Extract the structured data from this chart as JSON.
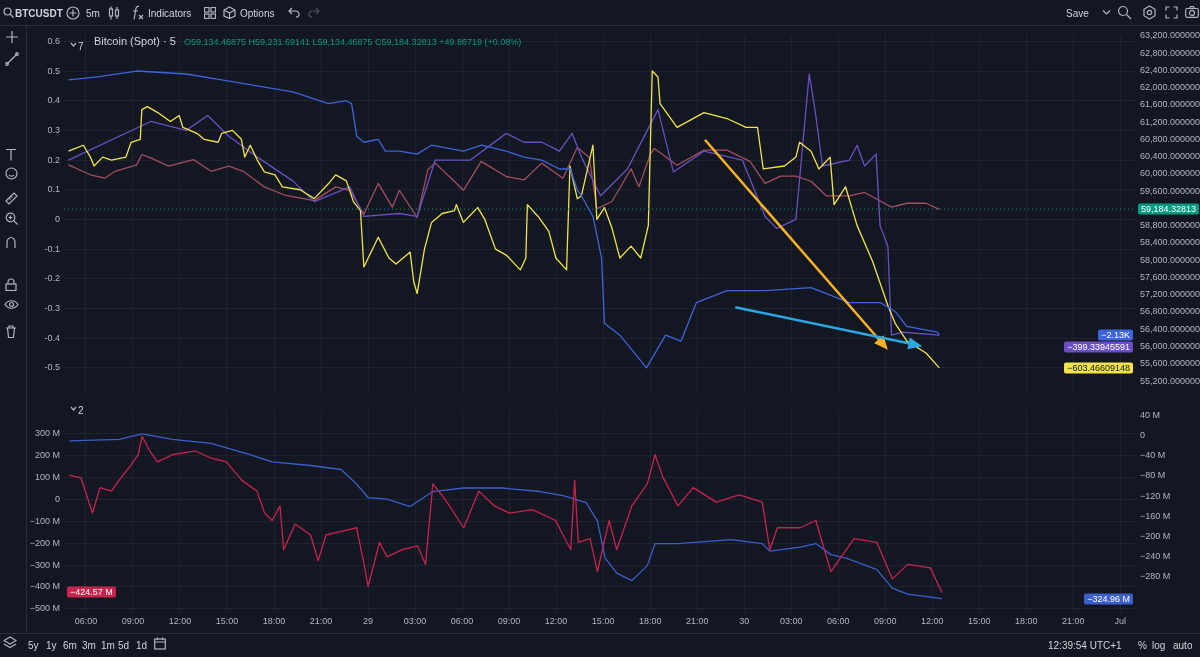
{
  "chart_data": [
    {
      "type": "line",
      "title": "Bitcoin (Spot) · 5",
      "subtitle": "O59,134.46875 H59,231.69141 L59,134.46875 C59,184.32813 +49.86719 (+0.08%)",
      "xlim": [
        "--06-28T04:36",
        "--07-01T01:00"
      ],
      "xticks": [
        {
          "value": "--06-28T06:00",
          "label": null
        },
        {
          "value": "--06-28T09:00",
          "label": null
        },
        {
          "value": "--06-28T12:00",
          "label": null
        },
        {
          "value": "--06-28T15:00",
          "label": null
        },
        {
          "value": "--06-28T18:00",
          "label": null
        },
        {
          "value": "--06-28T21:00",
          "label": null
        },
        {
          "value": "--06-29T00:00",
          "label": null
        },
        {
          "value": "--06-29T03:00",
          "label": null
        },
        {
          "value": "--06-29T06:00",
          "label": null
        },
        {
          "value": "--06-29T09:00",
          "label": null
        },
        {
          "value": "--06-29T12:00",
          "label": null
        },
        {
          "value": "--06-29T15:00",
          "label": null
        },
        {
          "value": "--06-29T18:00",
          "label": null
        },
        {
          "value": "--06-29T21:00",
          "label": null
        },
        {
          "value": "--06-30T00:00",
          "label": null
        },
        {
          "value": "--06-30T03:00",
          "label": null
        },
        {
          "value": "--06-30T06:00",
          "label": null
        },
        {
          "value": "--06-30T09:00",
          "label": null
        },
        {
          "value": "--06-30T12:00",
          "label": null
        },
        {
          "value": "--06-30T15:00",
          "label": null
        },
        {
          "value": "--06-30T18:00",
          "label": null
        },
        {
          "value": "--06-30T21:00",
          "label": null
        },
        {
          "value": "--07-01T00:00",
          "label": null
        }
      ],
      "ylim": [
        -0.58,
        0.62
      ],
      "yticks": [
        0.6,
        0.5,
        0.4,
        0.3,
        0.2,
        0.1,
        0,
        -0.1,
        -0.2,
        -0.3,
        -0.4,
        -0.5
      ],
      "y2lim": [
        54955,
        63210
      ],
      "y2ticks": [
        {
          "value": 63200,
          "label": "63,200.000000"
        },
        {
          "value": 62800,
          "label": "62,800.000000"
        },
        {
          "value": 62400,
          "label": "62,400.000000"
        },
        {
          "value": 62000,
          "label": "62,000.000000"
        },
        {
          "value": 61600,
          "label": "61,600.000000"
        },
        {
          "value": 61200,
          "label": "61,200.000000"
        },
        {
          "value": 60800,
          "label": "60,800.000000"
        },
        {
          "value": 60400,
          "label": "60,400.000000"
        },
        {
          "value": 60000,
          "label": "60,000.000000"
        },
        {
          "value": 59600,
          "label": "59,600.000000"
        },
        {
          "value": 58800,
          "label": "58,800.000000"
        },
        {
          "value": 58400,
          "label": "58,400.000000"
        },
        {
          "value": 58000,
          "label": "58,000.000000"
        },
        {
          "value": 57600,
          "label": "57,600.000000"
        },
        {
          "value": 57200,
          "label": "57,200.000000"
        },
        {
          "value": 56800,
          "label": "56,800.000000"
        },
        {
          "value": 56400,
          "label": "56,400.000000"
        },
        {
          "value": 56000,
          "label": "56,000.000000"
        },
        {
          "value": 55600,
          "label": "55,600.000000"
        },
        {
          "value": 55200,
          "label": "55,200.000000"
        }
      ],
      "grid": true,
      "tick_labels": "y",
      "series": [
        {
          "color": "#3d63dd",
          "x": [
            "--06-28T04:53",
            "--06-28T06:44",
            "--06-28T09:14",
            "--06-28T12:24",
            "--06-28T14:40",
            "--06-28T16:56",
            "--06-28T19:12",
            "--06-28T21:28",
            "--06-28T22:36",
            "--06-28T22:57",
            "--06-28T23:17",
            "--06-28T23:44",
            "--06-29T00:39",
            "--06-29T01:06",
            "--06-29T02:00",
            "--06-29T03:08",
            "--06-29T04:03",
            "--06-29T06:05",
            "--06-29T07:14",
            "--06-29T08:49",
            "--06-29T09:57",
            "--06-29T11:05",
            "--06-29T12:13",
            "--06-29T12:54",
            "--06-29T13:21",
            "--06-29T13:37",
            "--06-29T14:21",
            "--06-29T14:54",
            "--06-29T15:05",
            "--06-29T16:04",
            "--06-29T17:46",
            "--06-29T18:59",
            "--06-29T19:58",
            "--06-29T20:57",
            "--06-29T22:54",
            "--06-30T01:20",
            "--06-30T04:16",
            "--06-30T06:43",
            "--06-30T08:40",
            "--06-30T09:38",
            "--06-30T10:22",
            "--06-30T12:20",
            "--06-30T12:27"
          ],
          "values": [
            0.47,
            0.48,
            0.5,
            0.49,
            0.47,
            0.45,
            0.43,
            0.39,
            0.4,
            0.39,
            0.28,
            0.26,
            0.27,
            0.23,
            0.23,
            0.22,
            0.25,
            0.23,
            0.25,
            0.23,
            0.21,
            0.2,
            0.17,
            0.17,
            0.1,
            0.08,
            0.01,
            -0.13,
            -0.35,
            -0.39,
            -0.5,
            -0.39,
            -0.41,
            -0.28,
            -0.24,
            -0.24,
            -0.23,
            -0.28,
            -0.28,
            -0.31,
            -0.36,
            -0.38,
            -0.39
          ]
        },
        {
          "color": "#f2e34a",
          "x": [
            "--06-28T04:53",
            "--06-28T05:22",
            "--06-28T05:50",
            "--06-28T06:17",
            "--06-28T06:31",
            "--06-28T07:04",
            "--06-28T07:38",
            "--06-28T08:33",
            "--06-28T08:53",
            "--06-28T09:28",
            "--06-28T09:34",
            "--06-28T09:55",
            "--06-28T10:35",
            "--06-28T11:23",
            "--06-28T11:57",
            "--06-28T12:11",
            "--06-28T13:05",
            "--06-28T13:32",
            "--06-28T14:26",
            "--06-28T14:40",
            "--06-28T15:21",
            "--06-28T15:55",
            "--06-28T16:08",
            "--06-28T16:29",
            "--06-28T16:56",
            "--06-28T17:23",
            "--06-28T18:04",
            "--06-28T18:32",
            "--06-28T19:40",
            "--06-28T20:34",
            "--06-28T21:28",
            "--06-28T21:56",
            "--06-28T22:37",
            "--06-28T23:04",
            "--06-28T23:31",
            "--06-28T23:44",
            "--06-29T00:39",
            "--06-29T01:20",
            "--06-29T01:47",
            "--06-29T02:41",
            "--06-29T02:55",
            "--06-29T03:08",
            "--06-29T03:36",
            "--06-29T04:03",
            "--06-29T04:44",
            "--06-29T05:31",
            "--06-29T05:38",
            "--06-29T06:05",
            "--06-29T07:00",
            "--06-29T07:27",
            "--06-29T08:08",
            "--06-29T08:49",
            "--06-29T09:43",
            "--06-29T10:04",
            "--06-29T10:10",
            "--06-29T10:51",
            "--06-29T11:32",
            "--06-29T11:59",
            "--06-29T12:40",
            "--06-29T12:53",
            "--06-29T13:21",
            "--06-29T13:37",
            "--06-29T14:21",
            "--06-29T14:36",
            "--06-29T15:05",
            "--06-29T15:34",
            "--06-29T16:04",
            "--06-29T16:47",
            "--06-29T17:24",
            "--06-29T17:53",
            "--06-29T18:08",
            "--06-29T18:30",
            "--06-29T18:38",
            "--06-29T19:43",
            "--06-29T21:26",
            "--06-29T22:54",
            "--06-30T00:07",
            "--06-30T00:51",
            "--06-30T01:13",
            "--06-30T02:34",
            "--06-30T03:18",
            "--06-30T03:32",
            "--06-30T04:16",
            "--06-30T04:46",
            "--06-30T05:29",
            "--06-30T05:44",
            "--06-30T06:28",
            "--06-30T07:12",
            "--06-30T08:11",
            "--06-30T09:10",
            "--06-30T09:38",
            "--06-30T10:23",
            "--06-30T11:36",
            "--06-30T12:27"
          ],
          "values": [
            0.23,
            0.24,
            0.25,
            0.21,
            0.18,
            0.21,
            0.2,
            0.21,
            0.26,
            0.27,
            0.37,
            0.38,
            0.36,
            0.33,
            0.35,
            0.31,
            0.29,
            0.27,
            0.26,
            0.29,
            0.3,
            0.27,
            0.21,
            0.25,
            0.2,
            0.16,
            0.15,
            0.11,
            0.1,
            0.07,
            0.12,
            0.15,
            0.13,
            0.06,
            0.03,
            -0.16,
            -0.06,
            -0.13,
            -0.15,
            -0.11,
            -0.21,
            -0.25,
            -0.1,
            -0.01,
            0.02,
            0.03,
            0.05,
            -0.01,
            0.04,
            0,
            -0.1,
            -0.12,
            -0.17,
            -0.13,
            0.05,
            0.01,
            -0.04,
            -0.13,
            -0.17,
            0.18,
            0.07,
            0.08,
            0.25,
            0,
            0.04,
            -0.03,
            -0.13,
            -0.09,
            -0.13,
            -0.02,
            0.5,
            0.48,
            0.39,
            0.31,
            0.36,
            0.34,
            0.31,
            0.31,
            0.17,
            0.18,
            0.21,
            0.26,
            0.23,
            0.17,
            0.21,
            0.05,
            0.11,
            -0.02,
            -0.14,
            -0.29,
            -0.35,
            -0.41,
            -0.45,
            -0.5
          ]
        },
        {
          "color": "#6a4fc4",
          "x": [
            "--06-28T04:53",
            "--06-28T10:08",
            "--06-28T12:24",
            "--06-28T13:46",
            "--06-28T15:07",
            "--06-28T16:56",
            "--06-28T19:12",
            "--06-28T20:34",
            "--06-28T22:50",
            "--06-28T23:44",
            "--06-29T02:00",
            "--06-29T03:08",
            "--06-29T04:17",
            "--06-29T06:32",
            "--06-29T08:49",
            "--06-29T09:57",
            "--06-29T11:05",
            "--06-29T12:13",
            "--06-29T13:01",
            "--06-29T13:37",
            "--06-29T14:50",
            "--06-29T16:33",
            "--06-29T18:30",
            "--06-29T19:29",
            "--06-29T21:26",
            "--06-29T23:53",
            "--06-30T01:20",
            "--06-30T02:04",
            "--06-30T03:18",
            "--06-30T03:47",
            "--06-30T04:09",
            "--06-30T04:31",
            "--06-30T05:00",
            "--06-30T06:43",
            "--06-30T07:12",
            "--06-30T07:41",
            "--06-30T08:25",
            "--06-30T08:40",
            "--06-30T09:10",
            "--06-30T09:24",
            "--06-30T10:08",
            "--06-30T12:27"
          ],
          "values": [
            0.2,
            0.33,
            0.3,
            0.35,
            0.28,
            0.21,
            0.13,
            0.06,
            0.11,
            0.01,
            0.02,
            0.01,
            0.2,
            0.2,
            0.29,
            0.26,
            0.26,
            0.23,
            0.29,
            0.21,
            0.08,
            0.17,
            0.37,
            0.16,
            0.23,
            0.2,
            0.01,
            -0.03,
            0,
            0.28,
            0.49,
            0.37,
            0.18,
            0.2,
            0.25,
            0.18,
            0.22,
            -0.02,
            -0.09,
            -0.39,
            -0.38,
            -0.39
          ]
        },
        {
          "color": "#a34d5e",
          "axis": "y2",
          "x": [
            "--06-28T04:53",
            "--06-28T06:17",
            "--06-28T07:11",
            "--06-28T07:52",
            "--06-28T09:14",
            "--06-28T09:34",
            "--06-28T10:08",
            "--06-28T11:16",
            "--06-28T12:52",
            "--06-28T13:59",
            "--06-28T15:07",
            "--06-28T16:02",
            "--06-28T17:23",
            "--06-28T18:45",
            "--06-28T20:34",
            "--06-28T21:56",
            "--06-28T22:50",
            "--06-28T23:44",
            "--06-29T00:39",
            "--06-29T01:33",
            "--06-29T02:00",
            "--06-29T03:08",
            "--06-29T03:49",
            "--06-29T04:17",
            "--06-29T05:25",
            "--06-29T06:05",
            "--06-29T07:13",
            "--06-29T08:49",
            "--06-29T09:57",
            "--06-29T11:05",
            "--06-29T12:26",
            "--06-29T13:21",
            "--06-29T14:07",
            "--06-29T14:36",
            "--06-29T15:34",
            "--06-29T16:47",
            "--06-29T17:17",
            "--06-29T18:01",
            "--06-29T18:16",
            "--06-29T19:43",
            "--06-29T21:26",
            "--06-29T22:54",
            "--06-30T00:22",
            "--06-30T01:20",
            "--06-30T02:19",
            "--06-30T03:18",
            "--06-30T04:16",
            "--06-30T05:15",
            "--06-30T06:43",
            "--06-30T07:41",
            "--06-30T09:24",
            "--06-30T10:23",
            "--06-30T11:36",
            "--06-30T12:27"
          ],
          "values": [
            60210,
            59980,
            59900,
            60060,
            60210,
            60450,
            60370,
            60180,
            60330,
            60060,
            60180,
            60060,
            59700,
            59500,
            59380,
            59700,
            59620,
            59070,
            59780,
            59230,
            59620,
            58990,
            60100,
            60250,
            59860,
            59620,
            60290,
            59940,
            59860,
            60250,
            59900,
            60610,
            60380,
            59190,
            59360,
            60120,
            59700,
            60460,
            60590,
            60200,
            60550,
            60550,
            60290,
            59780,
            59950,
            59950,
            59830,
            59490,
            59490,
            59570,
            59230,
            59320,
            59320,
            59180
          ]
        }
      ],
      "ref_lines": [
        {
          "axis": "y2",
          "value": 59184.32813,
          "label": "59,184.32813",
          "color": "#089981",
          "line_style": "dotted"
        }
      ],
      "annotations": [
        "−2.13K",
        "−603.46609148",
        "−399.33945591"
      ]
    },
    {
      "type": "line",
      "xlim": [
        "--06-28T04:36",
        "--07-01T01:00"
      ],
      "xticks": [
        {
          "value": "--06-28T06:00",
          "label": "06:00"
        },
        {
          "value": "--06-28T09:00",
          "label": "09:00"
        },
        {
          "value": "--06-28T12:00",
          "label": "12:00"
        },
        {
          "value": "--06-28T15:00",
          "label": "15:00"
        },
        {
          "value": "--06-28T18:00",
          "label": "18:00"
        },
        {
          "value": "--06-28T21:00",
          "label": "21:00"
        },
        {
          "value": "--06-29T00:00",
          "label": "29"
        },
        {
          "value": "--06-29T03:00",
          "label": "03:00"
        },
        {
          "value": "--06-29T06:00",
          "label": "06:00"
        },
        {
          "value": "--06-29T09:00",
          "label": "09:00"
        },
        {
          "value": "--06-29T12:00",
          "label": "12:00"
        },
        {
          "value": "--06-29T15:00",
          "label": "15:00"
        },
        {
          "value": "--06-29T18:00",
          "label": "18:00"
        },
        {
          "value": "--06-29T21:00",
          "label": "21:00"
        },
        {
          "value": "--06-30T00:00",
          "label": "30"
        },
        {
          "value": "--06-30T03:00",
          "label": "03:00"
        },
        {
          "value": "--06-30T06:00",
          "label": "06:00"
        },
        {
          "value": "--06-30T09:00",
          "label": "09:00"
        },
        {
          "value": "--06-30T12:00",
          "label": "12:00"
        },
        {
          "value": "--06-30T15:00",
          "label": "15:00"
        },
        {
          "value": "--06-30T18:00",
          "label": "18:00"
        },
        {
          "value": "--06-30T21:00",
          "label": "21:00"
        },
        {
          "value": "--07-01T00:00",
          "label": "Jul"
        }
      ],
      "ylim": [
        -515,
        405
      ],
      "yticks": [
        {
          "value": 300,
          "label": "300 M"
        },
        {
          "value": 200,
          "label": "200 M"
        },
        {
          "value": 100,
          "label": "100 M"
        },
        0,
        {
          "value": -100,
          "label": "−100 M"
        },
        {
          "value": -200,
          "label": "−200 M"
        },
        {
          "value": -300,
          "label": "−300 M"
        },
        {
          "value": -400,
          "label": "−400 M"
        },
        {
          "value": -500,
          "label": "−500 M"
        }
      ],
      "y2lim": [
        -352,
        51
      ],
      "y2ticks": [
        {
          "value": 40,
          "label": "40 M"
        },
        0,
        {
          "value": -40,
          "label": "−40 M"
        },
        {
          "value": -80,
          "label": "−80 M"
        },
        {
          "value": -120,
          "label": "−120 M"
        },
        {
          "value": -160,
          "label": "−160 M"
        },
        {
          "value": -200,
          "label": "−200 M"
        },
        {
          "value": -240,
          "label": "−240 M"
        },
        {
          "value": -280,
          "label": "−280 M"
        }
      ],
      "grid": true,
      "series": [
        {
          "color": "#c8224e",
          "x": [
            "--06-28T04:57",
            "--06-28T05:41",
            "--06-28T06:25",
            "--06-28T06:54",
            "--06-28T07:38",
            "--06-28T08:07",
            "--06-28T08:51",
            "--06-28T09:20",
            "--06-28T09:35",
            "--06-28T10:04",
            "--06-28T10:34",
            "--06-28T11:32",
            "--06-28T13:00",
            "--06-28T13:59",
            "--06-28T14:58",
            "--06-28T15:56",
            "--06-28T16:55",
            "--06-28T17:24",
            "--06-28T17:53",
            "--06-28T18:23",
            "--06-28T18:37",
            "--06-28T19:21",
            "--06-28T20:20",
            "--06-28T20:49",
            "--06-28T21:19",
            "--06-28T22:17",
            "--06-28T23:16",
            "--06-28T23:45",
            "--06-29T00:00",
            "--06-29T00:44",
            "--06-29T01:13",
            "--06-29T02:11",
            "--06-29T03:10",
            "--06-29T03:40",
            "--06-29T04:08",
            "--06-29T04:53",
            "--06-29T06:06",
            "--06-29T07:04",
            "--06-29T08:03",
            "--06-29T09:02",
            "--06-29T10:29",
            "--06-29T11:58",
            "--06-29T12:56",
            "--06-29T13:11",
            "--06-29T13:25",
            "--06-29T14:10",
            "--06-29T14:38",
            "--06-29T15:23",
            "--06-29T15:52",
            "--06-29T16:50",
            "--06-29T17:49",
            "--06-29T18:19",
            "--06-29T18:48",
            "--06-29T19:46",
            "--06-29T20:45",
            "--06-29T22:13",
            "--06-29T23:41",
            "--06-30T01:09",
            "--06-30T01:38",
            "--06-30T02:07",
            "--06-30T03:35",
            "--06-30T04:34",
            "--06-30T05:32",
            "--06-30T06:31",
            "--06-30T07:01",
            "--06-30T08:28",
            "--06-30T09:27",
            "--06-30T10:26",
            "--06-30T11:53",
            "--06-30T12:37"
          ],
          "values": [
            110,
            97,
            -63,
            53,
            37,
            87,
            153,
            203,
            287,
            220,
            170,
            203,
            220,
            187,
            170,
            87,
            37,
            -63,
            -97,
            -30,
            -230,
            -113,
            -163,
            -280,
            -163,
            -147,
            -130,
            -297,
            -397,
            -197,
            -263,
            -230,
            -213,
            -297,
            70,
            3,
            -130,
            37,
            -30,
            -63,
            -47,
            -97,
            -230,
            87,
            -197,
            -180,
            -330,
            -97,
            -230,
            -30,
            70,
            203,
            103,
            -30,
            53,
            -13,
            20,
            -13,
            -230,
            -130,
            -130,
            -97,
            -330,
            -230,
            -180,
            -197,
            -363,
            -297,
            -313,
            -425
          ]
        },
        {
          "color": "#3a5fcd",
          "axis": "y2",
          "x": [
            "--06-28T04:57",
            "--06-28T08:07",
            "--06-28T09:35",
            "--06-28T11:32",
            "--06-28T13:59",
            "--06-28T16:25",
            "--06-28T17:53",
            "--06-28T20:20",
            "--06-28T22:17",
            "--06-28T23:16",
            "--06-29T00:00",
            "--06-29T01:13",
            "--06-29T02:41",
            "--06-29T04:08",
            "--06-29T06:06",
            "--06-29T08:32",
            "--06-29T10:59",
            "--06-29T12:27",
            "--06-29T13:55",
            "--06-29T14:38",
            "--06-29T15:08",
            "--06-29T15:52",
            "--06-29T16:50",
            "--06-29T17:49",
            "--06-29T18:19",
            "--06-29T19:46",
            "--06-29T23:11",
            "--06-30T01:09",
            "--06-30T01:38",
            "--06-30T03:35",
            "--06-30T04:34",
            "--06-30T05:32",
            "--06-30T06:31",
            "--06-30T08:28",
            "--06-30T09:27",
            "--06-30T10:26",
            "--06-30T12:37"
          ],
          "values": [
            -10,
            -7,
            4,
            -7,
            -15,
            -37,
            -52,
            -59,
            -67,
            -96,
            -123,
            -126,
            -141,
            -111,
            -104,
            -104,
            -111,
            -119,
            -133,
            -170,
            -244,
            -274,
            -289,
            -259,
            -215,
            -215,
            -207,
            -215,
            -230,
            -222,
            -215,
            -237,
            -244,
            -267,
            -304,
            -316,
            -325
          ]
        }
      ],
      "annotations": [
        "−424.57 M",
        "−324.96 M"
      ]
    },
    {
      "type": "other",
      "annotations": [
        "BTCUSDT",
        "5m",
        "Indicators",
        "Options",
        "Save",
        "7",
        "2",
        "5y",
        "1y",
        "6m",
        "3m",
        "1m",
        "5d",
        "1d",
        "12:39:54 UTC+1",
        "%",
        "log",
        "auto"
      ]
    }
  ]
}
